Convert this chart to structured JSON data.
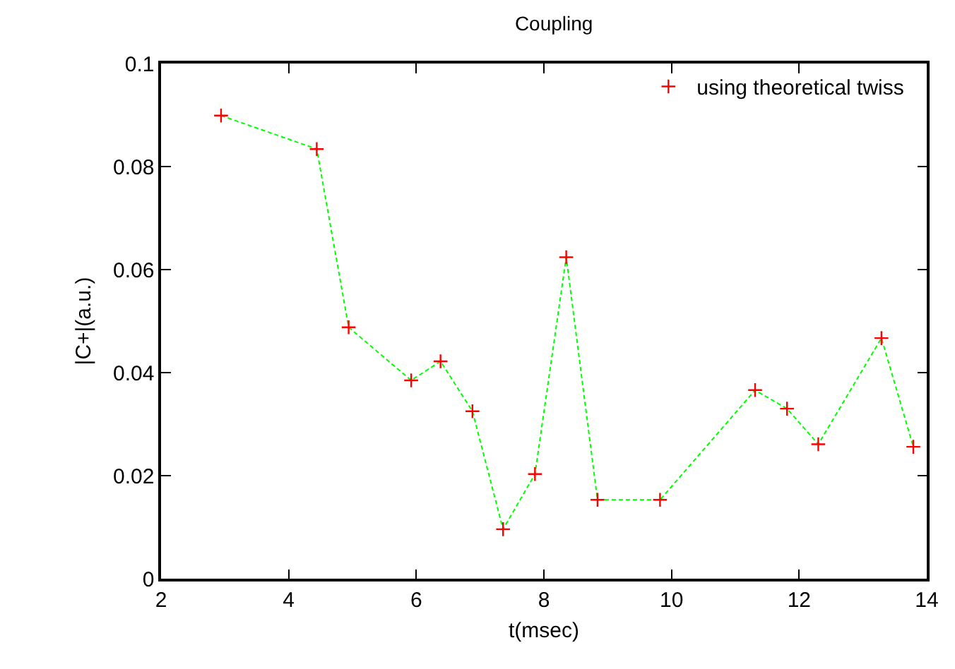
{
  "chart_data": {
    "type": "scatter",
    "title": "Coupling",
    "xlabel": "t(msec)",
    "ylabel": "|C+|(a.u.)",
    "x": [
      2.94,
      4.44,
      4.94,
      5.92,
      6.38,
      6.88,
      7.36,
      7.86,
      8.35,
      8.84,
      9.82,
      11.31,
      11.81,
      12.3,
      13.29,
      13.79
    ],
    "series": [
      {
        "type": "line",
        "color": "#00ff00",
        "line_style": "dashed",
        "marker": "none",
        "values": [
          0.0899,
          0.0834,
          0.0488,
          0.0385,
          0.0422,
          0.0325,
          0.0096,
          0.0203,
          0.0624,
          0.0153,
          0.0153,
          0.0366,
          0.033,
          0.0261,
          0.0467,
          0.0256
        ]
      },
      {
        "name": "using theoretical twiss",
        "color": "#ff0000",
        "marker": "cross",
        "values": [
          0.0899,
          0.0834,
          0.0488,
          0.0385,
          0.0422,
          0.0325,
          0.0096,
          0.0203,
          0.0624,
          0.0153,
          0.0153,
          0.0366,
          0.033,
          0.0261,
          0.0467,
          0.0256
        ]
      }
    ],
    "xlim": [
      2,
      14
    ],
    "xticks": [
      2,
      4,
      6,
      8,
      10,
      12,
      14
    ],
    "ylim": [
      0,
      0.1
    ],
    "yticks": [
      0,
      0.02,
      0.04,
      0.06,
      0.08,
      0.1
    ],
    "grid": false,
    "legend": "top right"
  }
}
